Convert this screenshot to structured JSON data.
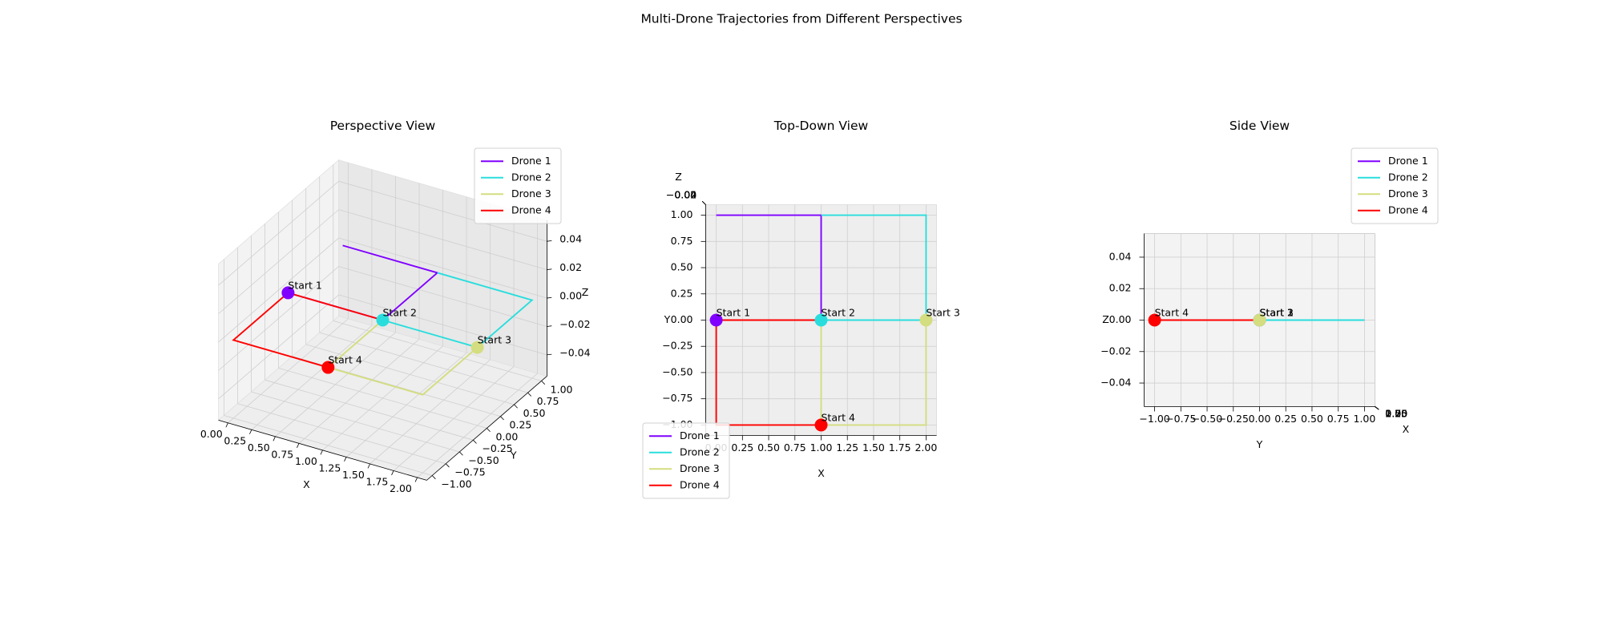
{
  "title": "Multi-Drone Trajectories from Different Perspectives",
  "chart_data": [
    {
      "type": "line3d",
      "title": "Perspective View",
      "xlabel": "X",
      "ylabel": "Y",
      "zlabel": "Z",
      "xlim": [
        -0.1,
        2.1
      ],
      "ylim": [
        -1.1,
        1.1
      ],
      "zlim": [
        -0.055,
        0.055
      ],
      "xticks": [
        {
          "value": 0,
          "label": "0.00"
        },
        0.25,
        {
          "value": 0.5,
          "label": "0.50"
        },
        0.75,
        {
          "value": 1,
          "label": "1.00"
        },
        1.25,
        {
          "value": 1.5,
          "label": "1.50"
        },
        1.75,
        {
          "value": 2,
          "label": "2.00"
        }
      ],
      "yticks": [
        {
          "value": -1,
          "label": "−1.00"
        },
        {
          "value": -0.75,
          "label": "−0.75"
        },
        {
          "value": -0.5,
          "label": "−0.50"
        },
        {
          "value": -0.25,
          "label": "−0.25"
        },
        {
          "value": 0,
          "label": "0.00"
        },
        0.25,
        {
          "value": 0.5,
          "label": "0.50"
        },
        0.75,
        {
          "value": 1,
          "label": "1.00"
        }
      ],
      "zticks": [
        {
          "value": -0.04,
          "label": "−0.04"
        },
        {
          "value": -0.02,
          "label": "−0.02"
        },
        {
          "value": 0,
          "label": "0.00"
        },
        0.02,
        0.04
      ],
      "legend": "upper right",
      "series": [
        {
          "name": "Drone 1",
          "color": "#8000ff",
          "x": [
            0,
            1,
            1,
            0
          ],
          "y": [
            0,
            0,
            1,
            1
          ],
          "z": [
            0,
            0,
            0,
            0
          ],
          "start_label": "Start 1"
        },
        {
          "name": "Drone 2",
          "color": "#2adddd",
          "x": [
            1,
            2,
            2,
            1
          ],
          "y": [
            0,
            0,
            1,
            1
          ],
          "z": [
            0,
            0,
            0,
            0
          ],
          "start_label": "Start 2"
        },
        {
          "name": "Drone 3",
          "color": "#d4dd80",
          "x": [
            2,
            2,
            1,
            1
          ],
          "y": [
            0,
            -1,
            -1,
            0
          ],
          "z": [
            0,
            0,
            0,
            0
          ],
          "start_label": "Start 3"
        },
        {
          "name": "Drone 4",
          "color": "#ff0000",
          "x": [
            1,
            0,
            0,
            1
          ],
          "y": [
            -1,
            -1,
            0,
            0
          ],
          "z": [
            0,
            0,
            0,
            0
          ],
          "start_label": "Start 4"
        }
      ]
    },
    {
      "type": "line3d",
      "title": "Top-Down View",
      "xlabel": "X",
      "ylabel": "Y",
      "zlabel": "Z",
      "xlim": [
        -0.1,
        2.1
      ],
      "ylim": [
        -1.1,
        1.1
      ],
      "zlim": [
        -0.055,
        0.055
      ],
      "xticks": [
        {
          "value": 0,
          "label": "0.00"
        },
        0.25,
        {
          "value": 0.5,
          "label": "0.50"
        },
        0.75,
        {
          "value": 1,
          "label": "1.00"
        },
        1.25,
        {
          "value": 1.5,
          "label": "1.50"
        },
        1.75,
        {
          "value": 2,
          "label": "2.00"
        }
      ],
      "yticks": [
        {
          "value": -1,
          "label": "−1.00"
        },
        {
          "value": -0.75,
          "label": "−0.75"
        },
        {
          "value": -0.5,
          "label": "−0.50"
        },
        {
          "value": -0.25,
          "label": "−0.25"
        },
        {
          "value": 0,
          "label": "0.00"
        },
        0.25,
        {
          "value": 0.5,
          "label": "0.50"
        },
        0.75,
        {
          "value": 1,
          "label": "1.00"
        }
      ],
      "zticks": [
        {
          "value": -0.04,
          "label": "−0.04"
        },
        {
          "value": -0.02,
          "label": "−0.02"
        },
        {
          "value": 0,
          "label": "0.00"
        },
        0.02,
        0.04
      ],
      "legend": "lower left",
      "series": [
        {
          "name": "Drone 1",
          "color": "#8000ff",
          "x": [
            0,
            1,
            1,
            0
          ],
          "y": [
            0,
            0,
            1,
            1
          ],
          "z": [
            0,
            0,
            0,
            0
          ],
          "start_label": "Start 1"
        },
        {
          "name": "Drone 2",
          "color": "#2adddd",
          "x": [
            1,
            2,
            2,
            1
          ],
          "y": [
            0,
            0,
            1,
            1
          ],
          "z": [
            0,
            0,
            0,
            0
          ],
          "start_label": "Start 2"
        },
        {
          "name": "Drone 3",
          "color": "#d4dd80",
          "x": [
            2,
            2,
            1,
            1
          ],
          "y": [
            0,
            -1,
            -1,
            0
          ],
          "z": [
            0,
            0,
            0,
            0
          ],
          "start_label": "Start 3"
        },
        {
          "name": "Drone 4",
          "color": "#ff0000",
          "x": [
            1,
            0,
            0,
            1
          ],
          "y": [
            -1,
            -1,
            0,
            0
          ],
          "z": [
            0,
            0,
            0,
            0
          ],
          "start_label": "Start 4"
        }
      ]
    },
    {
      "type": "line3d",
      "title": "Side View",
      "xlabel": "X",
      "ylabel": "Y",
      "zlabel": "Z",
      "xlim": [
        -0.1,
        2.1
      ],
      "ylim": [
        -1.1,
        1.1
      ],
      "zlim": [
        -0.055,
        0.055
      ],
      "xticks": [
        {
          "value": 0,
          "label": "0.00"
        },
        0.25,
        {
          "value": 0.5,
          "label": "0.50"
        },
        0.75,
        {
          "value": 1,
          "label": "1.00"
        },
        1.25,
        {
          "value": 1.5,
          "label": "1.50"
        },
        1.75,
        {
          "value": 2,
          "label": "2.00"
        }
      ],
      "yticks": [
        {
          "value": -1,
          "label": "−1.00"
        },
        {
          "value": -0.75,
          "label": "−0.75"
        },
        {
          "value": -0.5,
          "label": "−0.50"
        },
        {
          "value": -0.25,
          "label": "−0.25"
        },
        {
          "value": 0,
          "label": "0.00"
        },
        0.25,
        {
          "value": 0.5,
          "label": "0.50"
        },
        0.75,
        {
          "value": 1,
          "label": "1.00"
        }
      ],
      "zticks": [
        {
          "value": -0.04,
          "label": "−0.04"
        },
        {
          "value": -0.02,
          "label": "−0.02"
        },
        {
          "value": 0,
          "label": "0.00"
        },
        0.02,
        0.04
      ],
      "legend": "upper right",
      "series": [
        {
          "name": "Drone 1",
          "color": "#8000ff",
          "x": [
            0,
            1,
            1,
            0
          ],
          "y": [
            0,
            0,
            1,
            1
          ],
          "z": [
            0,
            0,
            0,
            0
          ],
          "start_label": "Start 1"
        },
        {
          "name": "Drone 2",
          "color": "#2adddd",
          "x": [
            1,
            2,
            2,
            1
          ],
          "y": [
            0,
            0,
            1,
            1
          ],
          "z": [
            0,
            0,
            0,
            0
          ],
          "start_label": "Start 2"
        },
        {
          "name": "Drone 3",
          "color": "#d4dd80",
          "x": [
            2,
            2,
            1,
            1
          ],
          "y": [
            0,
            -1,
            -1,
            0
          ],
          "z": [
            0,
            0,
            0,
            0
          ],
          "start_label": "Start 3"
        },
        {
          "name": "Drone 4",
          "color": "#ff0000",
          "x": [
            1,
            0,
            0,
            1
          ],
          "y": [
            -1,
            -1,
            0,
            0
          ],
          "z": [
            0,
            0,
            0,
            0
          ],
          "start_label": "Start 4"
        }
      ]
    }
  ]
}
